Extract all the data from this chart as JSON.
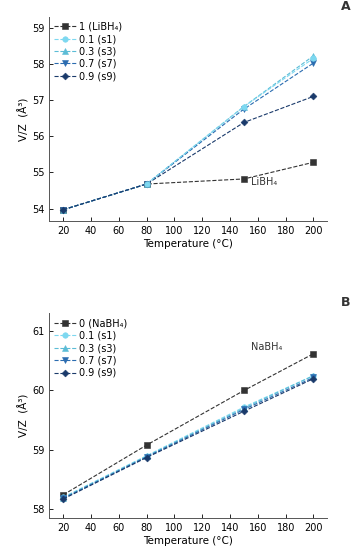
{
  "panel_A": {
    "panel_label": "A",
    "ylabel": "V/Z  (Å³)",
    "xlabel": "Temperature (°C)",
    "xlim": [
      10,
      210
    ],
    "ylim": [
      53.65,
      59.3
    ],
    "yticks": [
      54,
      55,
      56,
      57,
      58,
      59
    ],
    "xticks": [
      20,
      40,
      60,
      80,
      100,
      120,
      140,
      160,
      180,
      200
    ],
    "series": [
      {
        "label": "1 (LiBH₄)",
        "x": [
          20,
          80,
          150,
          200
        ],
        "y": [
          53.97,
          54.68,
          54.82,
          55.28
        ],
        "color": "#333333",
        "marker": "s",
        "linestyle": "--",
        "markersize": 4,
        "annotation": "LiBH₄",
        "ann_x": 155,
        "ann_y": 54.65
      },
      {
        "label": "0.1 (s1)",
        "x": [
          20,
          80
        ],
        "y": [
          53.97,
          54.68
        ],
        "color": "#7dd8f0",
        "marker": "o",
        "linestyle": "--",
        "markersize": 4
      },
      {
        "label": "0.3 (s3)",
        "x": [
          20,
          80,
          150,
          200
        ],
        "y": [
          53.97,
          54.68,
          56.82,
          58.22
        ],
        "color": "#5bbcd6",
        "marker": "^",
        "linestyle": "--",
        "markersize": 4
      },
      {
        "label": "0.7 (s7)",
        "x": [
          20,
          80,
          150,
          200
        ],
        "y": [
          53.97,
          54.68,
          56.75,
          58.02
        ],
        "color": "#2b6cb0",
        "marker": "v",
        "linestyle": "--",
        "markersize": 4
      },
      {
        "label": "0.9 (s9)",
        "x": [
          20,
          80,
          150,
          200
        ],
        "y": [
          53.97,
          54.68,
          56.38,
          57.1
        ],
        "color": "#1a3a6b",
        "marker": "D",
        "markersize": 3.5,
        "linestyle": "--"
      }
    ],
    "s1_extra": {
      "x": [
        150,
        200
      ],
      "y": [
        56.82,
        58.15
      ],
      "color": "#7dd8f0",
      "marker": "o",
      "linestyle": "--",
      "markersize": 4
    }
  },
  "panel_B": {
    "panel_label": "B",
    "ylabel": "V/Z  (Å³)",
    "xlabel": "Temperature (°C)",
    "xlim": [
      10,
      210
    ],
    "ylim": [
      57.85,
      61.3
    ],
    "yticks": [
      58,
      59,
      60,
      61
    ],
    "xticks": [
      20,
      40,
      60,
      80,
      100,
      120,
      140,
      160,
      180,
      200
    ],
    "series": [
      {
        "label": "0 (NaBH₄)",
        "x": [
          20,
          80,
          150,
          200
        ],
        "y": [
          58.24,
          59.08,
          60.0,
          60.62
        ],
        "color": "#333333",
        "marker": "s",
        "linestyle": "--",
        "markersize": 4,
        "annotation": "NaBH₄",
        "ann_x": 155,
        "ann_y": 60.68
      },
      {
        "label": "0.1 (s1)",
        "x": [
          20,
          80,
          150,
          200
        ],
        "y": [
          58.2,
          58.9,
          59.72,
          60.25
        ],
        "color": "#7dd8f0",
        "marker": "o",
        "linestyle": "--",
        "markersize": 4
      },
      {
        "label": "0.3 (s3)",
        "x": [
          20,
          80,
          150,
          200
        ],
        "y": [
          58.19,
          58.89,
          59.7,
          60.25
        ],
        "color": "#5bbcd6",
        "marker": "^",
        "linestyle": "--",
        "markersize": 4
      },
      {
        "label": "0.7 (s7)",
        "x": [
          20,
          80,
          150,
          200
        ],
        "y": [
          58.18,
          58.88,
          59.68,
          60.22
        ],
        "color": "#2b6cb0",
        "marker": "v",
        "linestyle": "--",
        "markersize": 4
      },
      {
        "label": "0.9 (s9)",
        "x": [
          20,
          80,
          150,
          200
        ],
        "y": [
          58.17,
          58.87,
          59.65,
          60.2
        ],
        "color": "#1a3a6b",
        "marker": "D",
        "markersize": 3.5,
        "linestyle": "--"
      }
    ]
  },
  "background_color": "#ffffff",
  "font_size": 7,
  "label_font_size": 7.5
}
